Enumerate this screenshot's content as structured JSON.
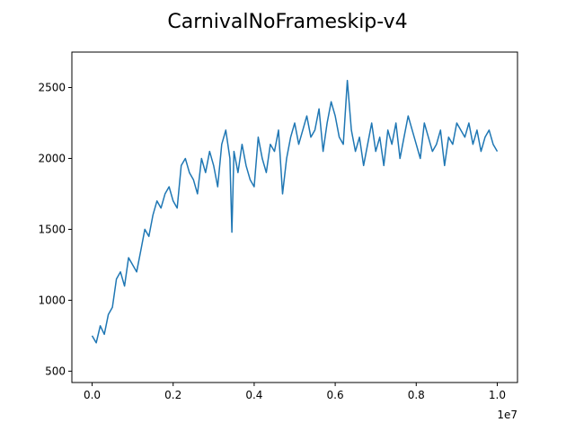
{
  "chart_data": {
    "type": "line",
    "title": "CarnivalNoFrameskip-v4",
    "xlabel": "",
    "ylabel": "",
    "x_offset_label": "1e7",
    "xlim": [
      -0.05,
      1.05
    ],
    "ylim": [
      420,
      2750
    ],
    "x_ticks": [
      0.0,
      0.2,
      0.4,
      0.6,
      0.8,
      1.0
    ],
    "x_tick_labels": [
      "0.0",
      "0.2",
      "0.4",
      "0.6",
      "0.8",
      "1.0"
    ],
    "y_ticks": [
      500,
      1000,
      1500,
      2000,
      2500
    ],
    "y_tick_labels": [
      "500",
      "1000",
      "1500",
      "2000",
      "2500"
    ],
    "grid": false,
    "colors": {
      "series": "#1f77b4",
      "axis": "#000000",
      "background": "#ffffff"
    },
    "series": [
      {
        "x": [
          0.0,
          0.01,
          0.02,
          0.03,
          0.04,
          0.05,
          0.06,
          0.07,
          0.08,
          0.09,
          0.1,
          0.11,
          0.12,
          0.13,
          0.14,
          0.15,
          0.16,
          0.17,
          0.18,
          0.19,
          0.2,
          0.21,
          0.22,
          0.23,
          0.24,
          0.25,
          0.26,
          0.27,
          0.28,
          0.29,
          0.3,
          0.31,
          0.32,
          0.33,
          0.34,
          0.345,
          0.35,
          0.36,
          0.37,
          0.38,
          0.39,
          0.4,
          0.41,
          0.42,
          0.43,
          0.44,
          0.45,
          0.46,
          0.47,
          0.48,
          0.49,
          0.5,
          0.51,
          0.52,
          0.53,
          0.54,
          0.55,
          0.56,
          0.57,
          0.58,
          0.59,
          0.6,
          0.61,
          0.62,
          0.63,
          0.64,
          0.65,
          0.66,
          0.67,
          0.68,
          0.69,
          0.7,
          0.71,
          0.72,
          0.73,
          0.74,
          0.75,
          0.76,
          0.77,
          0.78,
          0.79,
          0.8,
          0.81,
          0.82,
          0.83,
          0.84,
          0.85,
          0.86,
          0.87,
          0.88,
          0.89,
          0.9,
          0.91,
          0.92,
          0.93,
          0.94,
          0.95,
          0.96,
          0.97,
          0.98,
          0.99,
          1.0
        ],
        "y": [
          750,
          700,
          820,
          760,
          900,
          950,
          1150,
          1200,
          1100,
          1300,
          1250,
          1200,
          1350,
          1500,
          1450,
          1600,
          1700,
          1650,
          1750,
          1800,
          1700,
          1650,
          1950,
          2000,
          1900,
          1850,
          1750,
          2000,
          1900,
          2050,
          1950,
          1800,
          2100,
          2200,
          2000,
          1480,
          2050,
          1900,
          2100,
          1950,
          1850,
          1800,
          2150,
          2000,
          1900,
          2100,
          2050,
          2200,
          1750,
          2000,
          2150,
          2250,
          2100,
          2200,
          2300,
          2150,
          2200,
          2350,
          2050,
          2250,
          2400,
          2300,
          2150,
          2100,
          2550,
          2200,
          2050,
          2150,
          1950,
          2100,
          2250,
          2050,
          2150,
          1950,
          2200,
          2100,
          2250,
          2000,
          2150,
          2300,
          2200,
          2100,
          2000,
          2250,
          2150,
          2050,
          2100,
          2200,
          1950,
          2150,
          2100,
          2250,
          2200,
          2150,
          2250,
          2100,
          2200,
          2050,
          2150,
          2200,
          2100,
          2050
        ]
      }
    ]
  }
}
